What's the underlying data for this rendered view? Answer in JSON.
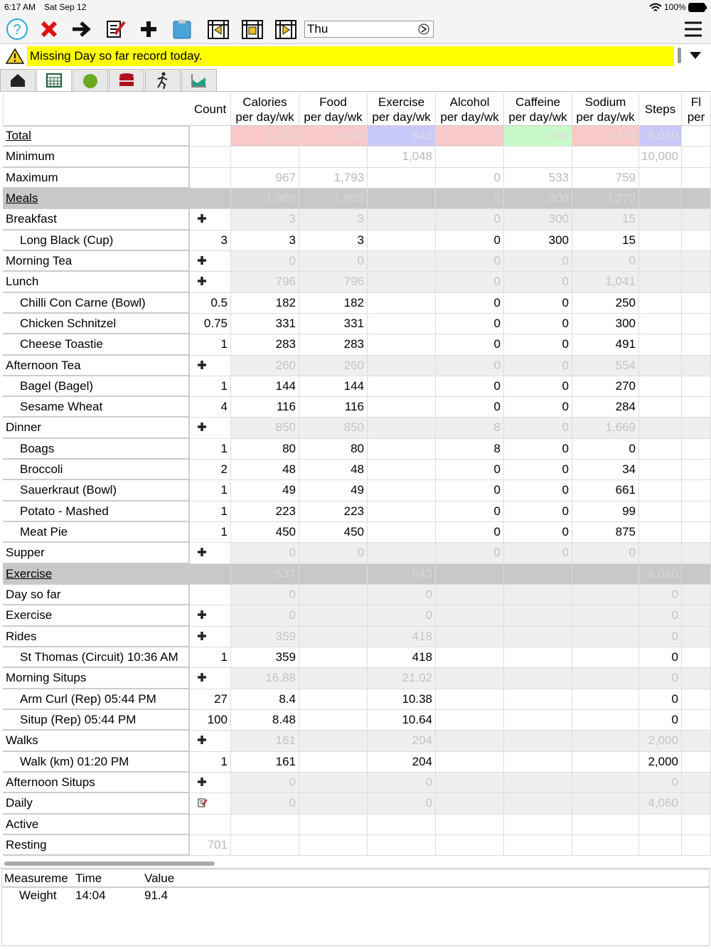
{
  "status": {
    "time": "6:17 AM",
    "date": "Sat Sep 12",
    "battery": "100%"
  },
  "toolbar": {
    "day": "Thu"
  },
  "alert": "Missing Day so far record today.",
  "table": {
    "columns": [
      {
        "name": "Count"
      },
      {
        "name": "Calories",
        "sub": "per day/wk"
      },
      {
        "name": "Food",
        "sub": "per day/wk"
      },
      {
        "name": "Exercise",
        "sub": "per day/wk"
      },
      {
        "name": "Alcohol",
        "sub": "per day/wk"
      },
      {
        "name": "Caffeine",
        "sub": "per day/wk"
      },
      {
        "name": "Sodium",
        "sub": "per day/wk"
      },
      {
        "name": "Steps"
      },
      {
        "name": "Fl",
        "sub": "per"
      }
    ],
    "total_colors": [
      null,
      "#f9c8c8",
      "#f9c8c8",
      "#c8c8f9",
      "#f9c8c8",
      "#c8f9c8",
      "#f9c8c8",
      "#c8c8f9",
      null
    ],
    "rows": [
      {
        "label": "Total",
        "kind": "total",
        "cells": [
          null,
          "1,372",
          "1,909",
          "643",
          "8",
          "300",
          "3,279",
          "6,060",
          null
        ]
      },
      {
        "label": "Minimum",
        "kind": "plain",
        "cells": [
          null,
          null,
          null,
          "1,048",
          null,
          null,
          null,
          "10,000",
          null
        ]
      },
      {
        "label": "Maximum",
        "kind": "plain",
        "cells": [
          null,
          "967",
          "1,793",
          null,
          "0",
          "533",
          "759",
          null,
          null
        ]
      },
      {
        "label": "Meals",
        "kind": "section",
        "cells": [
          null,
          "1,909",
          "1,909",
          null,
          "8",
          "300",
          "3,279",
          null,
          null
        ]
      },
      {
        "label": "Breakfast",
        "kind": "group",
        "marker": "plus",
        "cells": [
          null,
          "3",
          "3",
          null,
          "0",
          "300",
          "15",
          null,
          null
        ]
      },
      {
        "label": "Long Black (Cup)",
        "kind": "item",
        "cells": [
          "3",
          "3",
          "3",
          null,
          "0",
          "300",
          "15",
          null,
          null
        ]
      },
      {
        "label": "Morning Tea",
        "kind": "group",
        "marker": "plus",
        "cells": [
          null,
          "0",
          "0",
          null,
          "0",
          "0",
          "0",
          null,
          null
        ]
      },
      {
        "label": "Lunch",
        "kind": "group",
        "marker": "plus",
        "cells": [
          null,
          "796",
          "796",
          null,
          "0",
          "0",
          "1,041",
          null,
          null
        ]
      },
      {
        "label": "Chilli Con Carne (Bowl)",
        "kind": "item",
        "cells": [
          "0.5",
          "182",
          "182",
          null,
          "0",
          "0",
          "250",
          null,
          null
        ]
      },
      {
        "label": "Chicken Schnitzel",
        "kind": "item",
        "cells": [
          "0.75",
          "331",
          "331",
          null,
          "0",
          "0",
          "300",
          null,
          null
        ]
      },
      {
        "label": "Cheese Toastie",
        "kind": "item",
        "cells": [
          "1",
          "283",
          "283",
          null,
          "0",
          "0",
          "491",
          null,
          null
        ]
      },
      {
        "label": "Afternoon Tea",
        "kind": "group",
        "marker": "plus",
        "cells": [
          null,
          "260",
          "260",
          null,
          "0",
          "0",
          "554",
          null,
          null
        ]
      },
      {
        "label": "Bagel (Bagel)",
        "kind": "item",
        "cells": [
          "1",
          "144",
          "144",
          null,
          "0",
          "0",
          "270",
          null,
          null
        ]
      },
      {
        "label": "Sesame Wheat",
        "kind": "item",
        "cells": [
          "4",
          "116",
          "116",
          null,
          "0",
          "0",
          "284",
          null,
          null
        ]
      },
      {
        "label": "Dinner",
        "kind": "group",
        "marker": "plus",
        "cells": [
          null,
          "850",
          "850",
          null,
          "8",
          "0",
          "1,669",
          null,
          null
        ]
      },
      {
        "label": "Boags",
        "kind": "item",
        "cells": [
          "1",
          "80",
          "80",
          null,
          "8",
          "0",
          "0",
          null,
          null
        ]
      },
      {
        "label": "Broccoli",
        "kind": "item",
        "cells": [
          "2",
          "48",
          "48",
          null,
          "0",
          "0",
          "34",
          null,
          null
        ]
      },
      {
        "label": "Sauerkraut (Bowl)",
        "kind": "item",
        "cells": [
          "1",
          "49",
          "49",
          null,
          "0",
          "0",
          "661",
          null,
          null
        ]
      },
      {
        "label": "Potato - Mashed",
        "kind": "item",
        "cells": [
          "1",
          "223",
          "223",
          null,
          "0",
          "0",
          "99",
          null,
          null
        ]
      },
      {
        "label": "Meat Pie",
        "kind": "item",
        "cells": [
          "1",
          "450",
          "450",
          null,
          "0",
          "0",
          "875",
          null,
          null
        ]
      },
      {
        "label": "Supper",
        "kind": "group",
        "marker": "plus",
        "cells": [
          null,
          "0",
          "0",
          null,
          "0",
          "0",
          "0",
          null,
          null
        ]
      },
      {
        "label": "Exercise",
        "kind": "section",
        "cells": [
          null,
          "537",
          null,
          "643",
          null,
          null,
          null,
          "6,060",
          null
        ]
      },
      {
        "label": "Day so far",
        "kind": "group",
        "cells": [
          null,
          "0",
          null,
          "0",
          null,
          null,
          null,
          "0",
          null
        ]
      },
      {
        "label": "Exercise",
        "kind": "group",
        "marker": "plus",
        "cells": [
          null,
          "0",
          null,
          "0",
          null,
          null,
          null,
          "0",
          null
        ]
      },
      {
        "label": "Rides",
        "kind": "group",
        "marker": "plus",
        "cells": [
          null,
          "359",
          null,
          "418",
          null,
          null,
          null,
          "0",
          null
        ]
      },
      {
        "label": "St Thomas (Circuit) 10:36 AM",
        "kind": "item",
        "cells": [
          "1",
          "359",
          null,
          "418",
          null,
          null,
          null,
          "0",
          null
        ]
      },
      {
        "label": "Morning Situps",
        "kind": "group",
        "marker": "plus",
        "cells": [
          null,
          "16.88",
          null,
          "21.02",
          null,
          null,
          null,
          "0",
          null
        ]
      },
      {
        "label": "Arm Curl (Rep) 05:44 PM",
        "kind": "item",
        "cells": [
          "27",
          "8.4",
          null,
          "10.38",
          null,
          null,
          null,
          "0",
          null
        ]
      },
      {
        "label": "Situp (Rep) 05:44 PM",
        "kind": "item",
        "cells": [
          "100",
          "8.48",
          null,
          "10.64",
          null,
          null,
          null,
          "0",
          null
        ]
      },
      {
        "label": "Walks",
        "kind": "group",
        "marker": "plus",
        "cells": [
          null,
          "161",
          null,
          "204",
          null,
          null,
          null,
          "2,000",
          null
        ]
      },
      {
        "label": "Walk (km) 01:20 PM",
        "kind": "item",
        "cells": [
          "1",
          "161",
          null,
          "204",
          null,
          null,
          null,
          "2,000",
          null
        ]
      },
      {
        "label": "Afternoon Situps",
        "kind": "group",
        "marker": "plus",
        "cells": [
          null,
          "0",
          null,
          "0",
          null,
          null,
          null,
          "0",
          null
        ]
      },
      {
        "label": "Daily",
        "kind": "group",
        "marker": "edit",
        "cells": [
          null,
          "0",
          null,
          "0",
          null,
          null,
          null,
          "4,060",
          null
        ]
      },
      {
        "label": "Active",
        "kind": "plain",
        "cells": [
          null,
          null,
          null,
          null,
          null,
          null,
          null,
          null,
          null
        ]
      },
      {
        "label": "Resting",
        "kind": "plain",
        "cells": [
          "701",
          null,
          null,
          null,
          null,
          null,
          null,
          null,
          null
        ]
      }
    ]
  },
  "measurements": {
    "columns": [
      "Measureme",
      "Time",
      "Value"
    ],
    "rows": [
      [
        "Weight",
        "14:04",
        "91.4"
      ]
    ]
  }
}
